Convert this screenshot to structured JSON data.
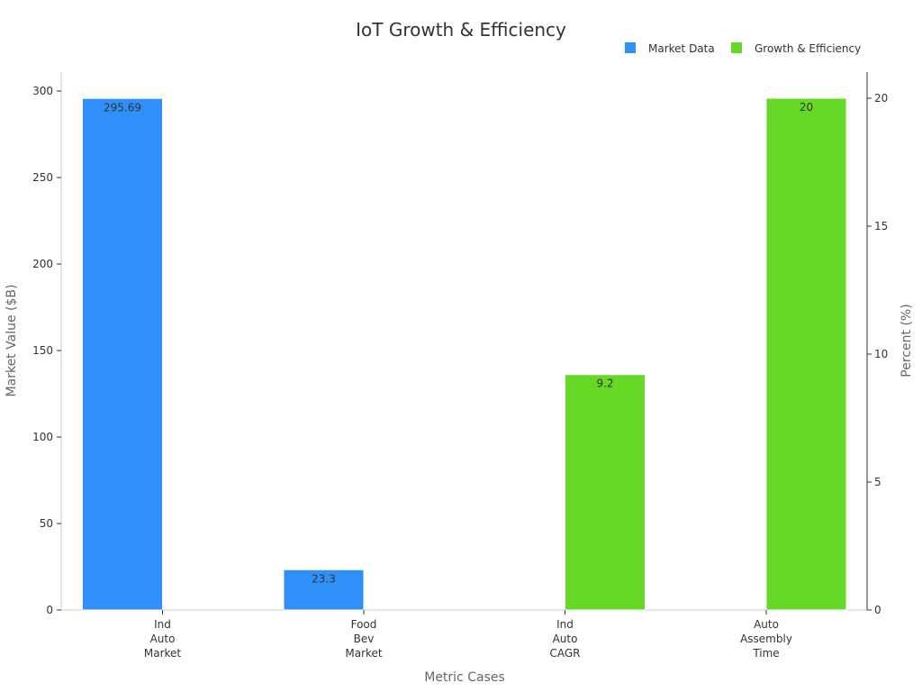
{
  "colors": {
    "market": "#2e90f8",
    "growth": "#66d926"
  },
  "chart_data": {
    "type": "bar",
    "title": "IoT Growth & Efficiency",
    "xlabel": "Metric Cases",
    "ylabel": "Market Value ($B)",
    "y2label": "Percent (%)",
    "legend_position": "top-right",
    "grid": false,
    "categories": [
      [
        "Ind",
        "Auto",
        "Market"
      ],
      [
        "Food",
        "Bev",
        "Market"
      ],
      [
        "Ind",
        "Auto",
        "CAGR"
      ],
      [
        "Auto",
        "Assembly",
        "Time"
      ]
    ],
    "ylim": [
      0,
      310
    ],
    "y_ticks": [
      "0",
      "50",
      "100",
      "150",
      "200",
      "250",
      "300"
    ],
    "y2lim": [
      0,
      21
    ],
    "y2_ticks": [
      "0",
      "5",
      "10",
      "15",
      "20"
    ],
    "series": [
      {
        "name": "Market Data",
        "axis": "left",
        "color": "#2e90f8",
        "values": [
          295.69,
          23.3,
          null,
          null
        ],
        "labels": [
          "295.69",
          "23.3",
          "",
          ""
        ]
      },
      {
        "name": "Growth & Efficiency",
        "axis": "right",
        "color": "#66d926",
        "values": [
          null,
          null,
          9.2,
          20
        ],
        "labels": [
          "",
          "",
          "9.2",
          "20"
        ]
      }
    ]
  }
}
